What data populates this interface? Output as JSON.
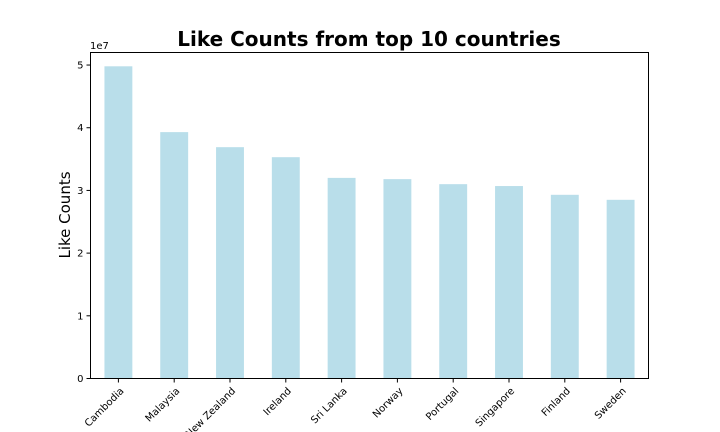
{
  "chart_data": {
    "type": "bar",
    "title": "Like Counts from top 10 countries",
    "xlabel": "",
    "ylabel": "Like Counts",
    "y_scale_label": "1e7",
    "ylim": [
      0,
      52000000
    ],
    "yticks": [
      0,
      10000000,
      20000000,
      30000000,
      40000000,
      50000000
    ],
    "ytick_labels": [
      "0",
      "1",
      "2",
      "3",
      "4",
      "5"
    ],
    "categories": [
      "Cambodia",
      "Malaysia",
      "New Zealand",
      "Ireland",
      "Sri Lanka",
      "Norway",
      "Portugal",
      "Singapore",
      "Finland",
      "Sweden"
    ],
    "values": [
      49800000,
      39300000,
      36900000,
      35300000,
      32000000,
      31800000,
      31000000,
      30700000,
      29300000,
      28500000
    ],
    "colors": {
      "bar": "#add8e6"
    },
    "grid": false,
    "legend": "none"
  }
}
